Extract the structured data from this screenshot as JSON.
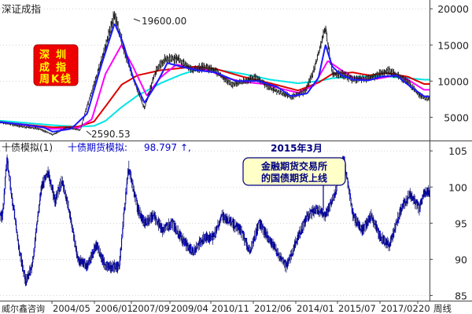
{
  "chart_data": [
    {
      "type": "line",
      "title": "深证成指",
      "box_text": [
        "深圳",
        "成指",
        "周K线"
      ],
      "annotations": [
        {
          "text": "19600.00",
          "x": "2007/10",
          "y": 19600
        },
        {
          "text": "2590.53",
          "x": "2005/07",
          "y": 2590.53
        }
      ],
      "ylim": [
        2000,
        21000
      ],
      "yticks": [
        5000,
        10000,
        15000,
        20000
      ],
      "series": [
        {
          "color": "#000000",
          "style": "weekly-candles",
          "x": [
            "2003/09",
            "2004/04",
            "2005/01",
            "2005/07",
            "2006/01",
            "2006/07",
            "2006/10",
            "2007/04",
            "2007/10",
            "2008/02",
            "2008/06",
            "2008/11",
            "2009/04",
            "2009/08",
            "2010/01",
            "2010/08",
            "2011/01",
            "2011/06",
            "2012/01",
            "2012/12",
            "2013/06",
            "2014/03",
            "2014/09",
            "2015/01",
            "2015/06",
            "2015/09",
            "2016/01",
            "2016/06",
            "2017/01",
            "2017/10",
            "2018/06",
            "2018/10",
            "2019/01"
          ],
          "values": [
            4300,
            3800,
            3400,
            2600,
            3600,
            3200,
            6600,
            12500,
            19200,
            14500,
            10500,
            6200,
            11500,
            13000,
            13200,
            11500,
            12000,
            11500,
            9500,
            10500,
            9000,
            7800,
            8500,
            11500,
            17500,
            11000,
            11000,
            10200,
            10400,
            11500,
            9800,
            8400,
            7600
          ]
        },
        {
          "color": "#1a1aff",
          "style": "ma-short",
          "x": [
            "2003/09",
            "2004/06",
            "2005/03",
            "2005/07",
            "2006/03",
            "2006/10",
            "2007/04",
            "2007/10",
            "2008/02",
            "2008/06",
            "2008/11",
            "2009/04",
            "2009/09",
            "2010/03",
            "2010/10",
            "2011/06",
            "2012/03",
            "2013/01",
            "2013/09",
            "2014/03",
            "2014/10",
            "2015/03",
            "2015/06",
            "2015/09",
            "2016/01",
            "2016/06",
            "2017/01",
            "2017/06",
            "2018/01",
            "2018/06",
            "2019/01"
          ],
          "values": [
            4300,
            4000,
            3600,
            3000,
            3400,
            5500,
            12000,
            18000,
            15000,
            10500,
            7000,
            9500,
            12500,
            12000,
            11500,
            11200,
            10000,
            10000,
            9200,
            7900,
            8300,
            10500,
            15000,
            12000,
            10800,
            10200,
            10100,
            10600,
            10800,
            9500,
            7900
          ]
        },
        {
          "color": "#ff00ff",
          "style": "ma-mid",
          "x": [
            "2003/09",
            "2005/07",
            "2006/06",
            "2006/12",
            "2007/06",
            "2008/01",
            "2008/06",
            "2008/12",
            "2009/06",
            "2010/01",
            "2010/08",
            "2011/03",
            "2011/10",
            "2012/06",
            "2013/03",
            "2013/10",
            "2014/06",
            "2015/01",
            "2015/07",
            "2016/01",
            "2016/06",
            "2017/01",
            "2017/06",
            "2018/01",
            "2018/06",
            "2019/01"
          ],
          "values": [
            4300,
            3400,
            3500,
            4700,
            11000,
            15000,
            12000,
            8000,
            10500,
            12300,
            11800,
            11500,
            10500,
            9900,
            9600,
            9000,
            8400,
            9400,
            12800,
            11500,
            10500,
            10200,
            10400,
            10800,
            10200,
            8800
          ]
        },
        {
          "color": "#dd0000",
          "style": "ma-long",
          "x": [
            "2003/09",
            "2005/07",
            "2006/06",
            "2007/01",
            "2007/06",
            "2008/01",
            "2008/08",
            "2009/06",
            "2010/03",
            "2010/09",
            "2011/06",
            "2012/06",
            "2013/06",
            "2014/06",
            "2015/03",
            "2015/09",
            "2016/06",
            "2017/01",
            "2017/09",
            "2018/06",
            "2019/01"
          ],
          "values": [
            4300,
            3600,
            3700,
            4400,
            6500,
            9500,
            10800,
            11500,
            11800,
            12000,
            11700,
            10600,
            9700,
            8700,
            9800,
            11000,
            11200,
            10800,
            11100,
            10600,
            9600
          ]
        },
        {
          "color": "#00e5e5",
          "style": "ma-longest",
          "x": [
            "2003/09",
            "2005/07",
            "2006/06",
            "2007/01",
            "2007/06",
            "2008/01",
            "2008/08",
            "2009/06",
            "2010/03",
            "2010/09",
            "2011/06",
            "2012/06",
            "2013/06",
            "2014/06",
            "2015/03",
            "2015/09",
            "2016/06",
            "2017/06",
            "2018/06",
            "2019/01"
          ],
          "values": [
            4500,
            3900,
            3700,
            3800,
            4500,
            6400,
            8000,
            9700,
            10900,
            11500,
            11600,
            11000,
            10200,
            9700,
            10000,
            10400,
            10600,
            10700,
            10400,
            10200
          ]
        }
      ]
    },
    {
      "type": "line",
      "title": "十债模拟(1)",
      "series_label": "十债期货模拟:",
      "last_value": "98.797",
      "last_value_suffix": "↑,",
      "event_title": "2015年3月",
      "event_box": [
        "金融期货交易所",
        "的国债期货上线"
      ],
      "source": "威尔鑫咨询",
      "period_label": "周线",
      "ylim": [
        84.5,
        106
      ],
      "yticks": [
        85,
        90,
        95,
        100,
        105
      ],
      "xticks": [
        "2004/05",
        "2006/01",
        "2007/09",
        "2009/04",
        "2010/11",
        "2012/06",
        "2014/01",
        "2015/07",
        "2017/02",
        "20"
      ],
      "series": [
        {
          "color": "#0000ee",
          "style": "weekly-ohlc",
          "x": [
            "2003/09",
            "2003/11",
            "2004/01",
            "2004/04",
            "2004/07",
            "2004/10",
            "2005/02",
            "2005/05",
            "2005/08",
            "2005/11",
            "2006/02",
            "2006/06",
            "2006/10",
            "2007/02",
            "2007/06",
            "2007/09",
            "2007/12",
            "2008/04",
            "2008/08",
            "2008/11",
            "2009/03",
            "2009/07",
            "2009/11",
            "2010/03",
            "2010/08",
            "2011/01",
            "2011/05",
            "2011/09",
            "2012/01",
            "2012/05",
            "2012/09",
            "2013/01",
            "2013/05",
            "2013/09",
            "2014/01",
            "2014/06",
            "2014/10",
            "2015/02",
            "2015/06",
            "2015/10",
            "2016/02",
            "2016/06",
            "2016/10",
            "2017/02",
            "2017/06",
            "2017/10",
            "2018/03",
            "2018/07",
            "2018/11",
            "2019/01"
          ],
          "values": [
            96,
            104,
            99,
            92,
            87,
            89,
            100,
            102,
            98,
            101,
            97,
            90,
            89,
            92,
            89,
            89,
            89,
            103,
            97,
            95,
            96,
            94,
            95,
            93,
            91,
            93,
            93,
            96,
            95,
            94,
            91,
            95,
            93,
            91,
            89,
            93,
            96,
            97,
            96,
            99,
            104,
            96,
            94,
            96,
            93,
            92,
            97,
            99,
            97,
            99.3
          ]
        }
      ]
    }
  ]
}
